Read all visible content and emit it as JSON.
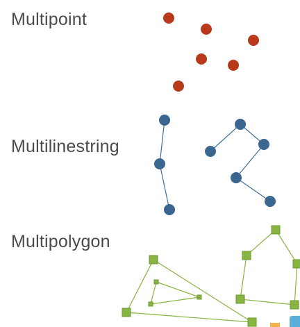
{
  "labels": {
    "multipoint": "Multipoint",
    "multilinestring": "Multilinestring",
    "multipolygon": "Multipolygon"
  },
  "colors": {
    "label_text": "#4a4a4a",
    "point_fill": "#b83a1b",
    "line_stroke": "#3f6e95",
    "line_vertex_fill": "#3a6690",
    "polygon_stroke": "#86b43c",
    "polygon_vertex_fill": "#88b542",
    "polygon_vertex_stroke": "#6c9a2e",
    "partial_blue": "#5aaed8",
    "partial_orange": "#f0b04a"
  }
}
